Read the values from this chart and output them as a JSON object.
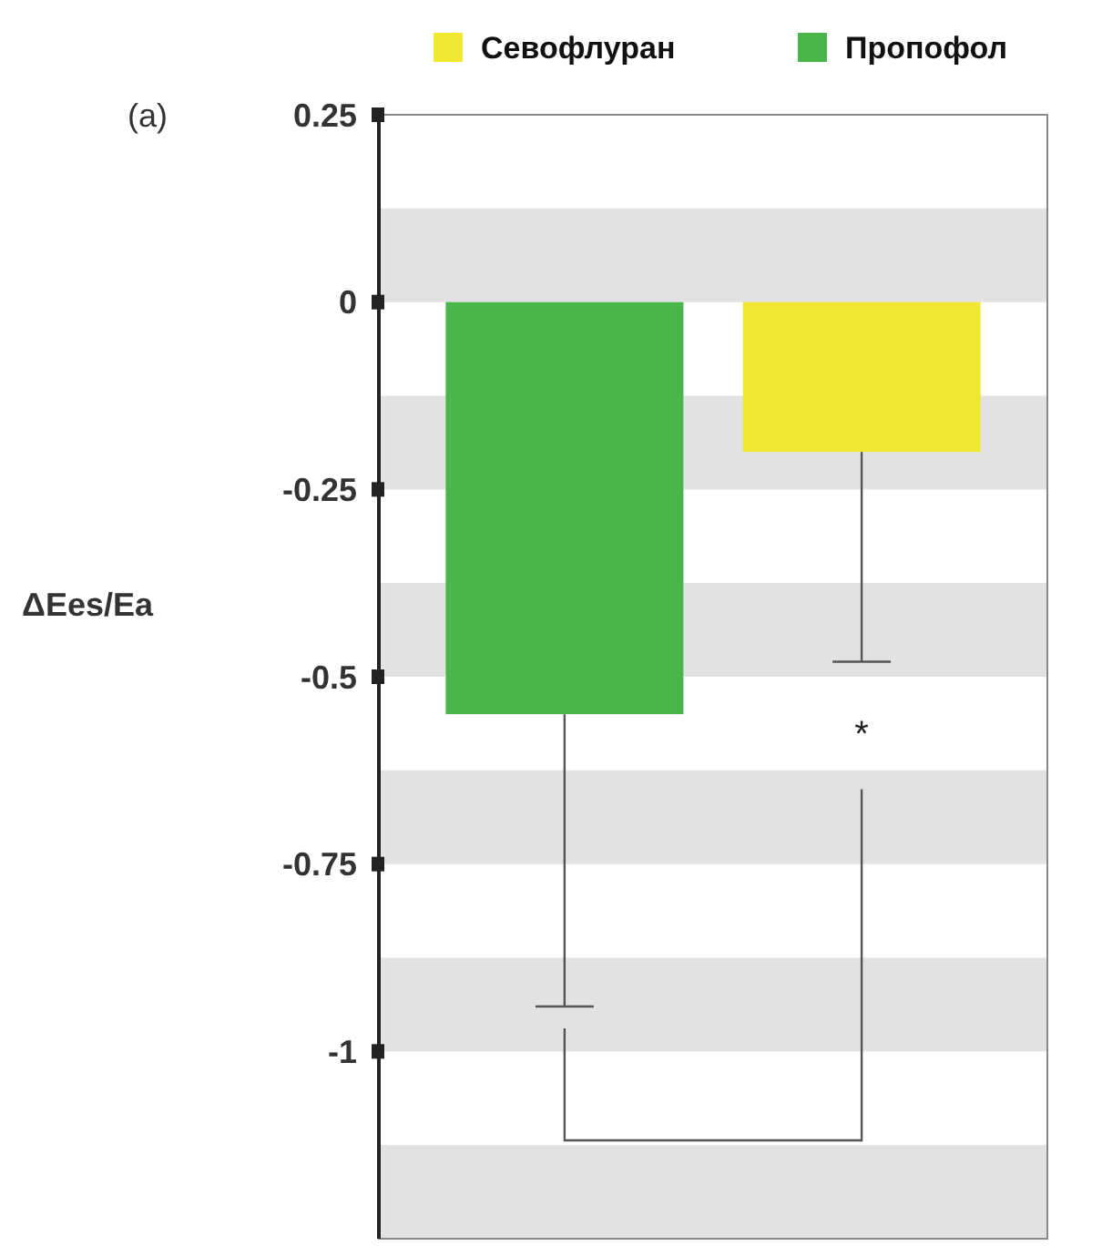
{
  "chart_data": {
    "type": "bar",
    "ylabel": "ΔEes/Ea",
    "categories": [
      null
    ],
    "series": [
      {
        "name": "Пропофол",
        "color": "#48b64a",
        "values": [
          -0.55
        ],
        "errors": [
          [
            -0.94,
            -0.55
          ]
        ]
      },
      {
        "name": "Севофлуран",
        "color": "#f0e830",
        "values": [
          -0.2
        ],
        "errors": [
          [
            -0.48,
            -0.2
          ]
        ]
      }
    ],
    "ylim": [
      -1.25,
      0.25
    ],
    "yticks": [
      0.25,
      0,
      -0.25,
      -0.5,
      -0.75,
      -1
    ],
    "bands": [
      {
        "axis": "y",
        "from": 0,
        "to": 0.125,
        "color": "#e2e2e2"
      },
      {
        "axis": "y",
        "from": -0.25,
        "to": -0.125,
        "color": "#e2e2e2"
      },
      {
        "axis": "y",
        "from": -0.5,
        "to": -0.375,
        "color": "#e2e2e2"
      },
      {
        "axis": "y",
        "from": -0.75,
        "to": -0.625,
        "color": "#e2e2e2"
      },
      {
        "axis": "y",
        "from": -1,
        "to": -0.875,
        "color": "#e2e2e2"
      },
      {
        "axis": "y",
        "from": -1.25,
        "to": -1.125,
        "color": "#e2e2e2"
      }
    ],
    "annotations": [
      "(a)",
      "*"
    ],
    "legend": "top right",
    "grid": false
  }
}
